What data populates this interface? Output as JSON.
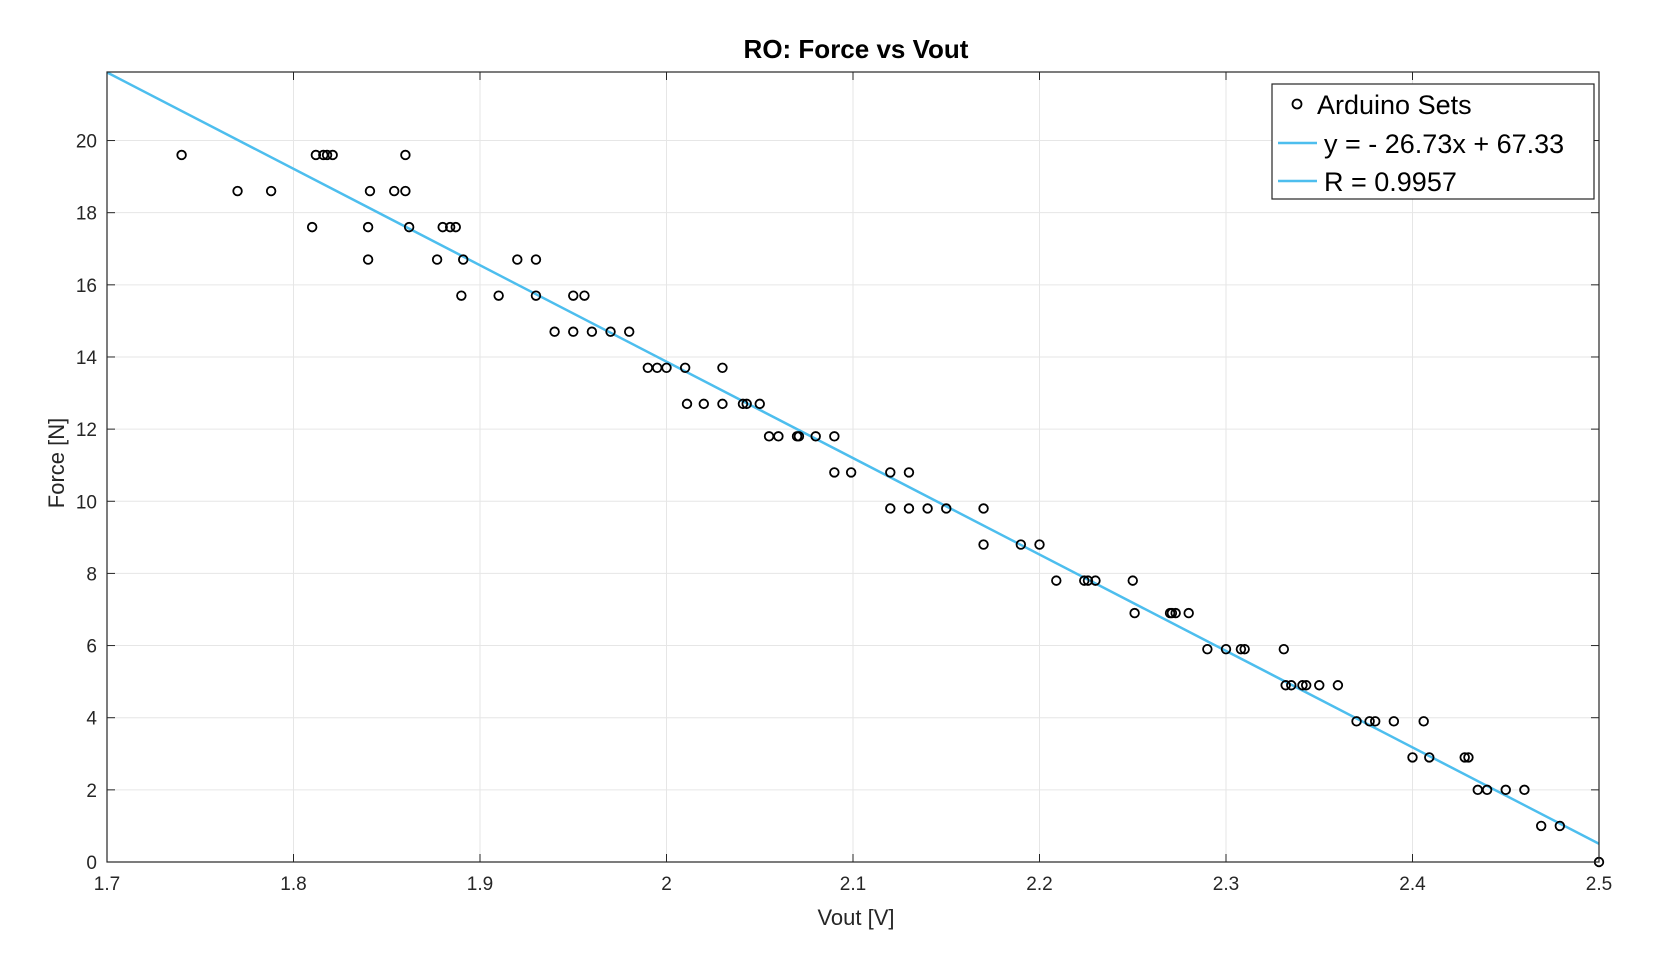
{
  "chart_data": {
    "type": "scatter",
    "title": "RO: Force vs Vout",
    "xlabel": "Vout [V]",
    "ylabel": "Force [N]",
    "xlim": [
      1.7,
      2.5
    ],
    "ylim": [
      0,
      21.9
    ],
    "xticks": [
      "1.7",
      "1.8",
      "1.9",
      "2",
      "2.1",
      "2.2",
      "2.3",
      "2.4",
      "2.5"
    ],
    "yticks": [
      "0",
      "2",
      "4",
      "6",
      "8",
      "10",
      "12",
      "14",
      "16",
      "18",
      "20"
    ],
    "grid": true,
    "legend_position": "top-right",
    "colors": {
      "points": "#000000",
      "fit_line": "#4DBEEE",
      "grid": "#e6e6e6",
      "axes": "#262626"
    },
    "legend": [
      {
        "label": "Arduino Sets",
        "marker": "circle"
      },
      {
        "label": "y = - 26.73x + 67.33",
        "marker": "line"
      },
      {
        "label": "R = 0.9957",
        "marker": "line"
      }
    ],
    "series": [
      {
        "name": "Arduino Sets",
        "kind": "scatter",
        "points": [
          [
            1.74,
            19.6
          ],
          [
            1.812,
            19.6
          ],
          [
            1.816,
            19.6
          ],
          [
            1.818,
            19.6
          ],
          [
            1.821,
            19.6
          ],
          [
            1.86,
            19.6
          ],
          [
            1.77,
            18.6
          ],
          [
            1.788,
            18.6
          ],
          [
            1.841,
            18.6
          ],
          [
            1.854,
            18.6
          ],
          [
            1.86,
            18.6
          ],
          [
            1.81,
            17.6
          ],
          [
            1.84,
            17.6
          ],
          [
            1.862,
            17.6
          ],
          [
            1.88,
            17.6
          ],
          [
            1.884,
            17.6
          ],
          [
            1.887,
            17.6
          ],
          [
            1.84,
            16.7
          ],
          [
            1.877,
            16.7
          ],
          [
            1.891,
            16.7
          ],
          [
            1.92,
            16.7
          ],
          [
            1.93,
            16.7
          ],
          [
            1.89,
            15.7
          ],
          [
            1.91,
            15.7
          ],
          [
            1.93,
            15.7
          ],
          [
            1.95,
            15.7
          ],
          [
            1.956,
            15.7
          ],
          [
            1.94,
            14.7
          ],
          [
            1.95,
            14.7
          ],
          [
            1.96,
            14.7
          ],
          [
            1.97,
            14.7
          ],
          [
            1.98,
            14.7
          ],
          [
            1.99,
            13.7
          ],
          [
            1.995,
            13.7
          ],
          [
            2.0,
            13.7
          ],
          [
            2.01,
            13.7
          ],
          [
            2.03,
            13.7
          ],
          [
            2.011,
            12.7
          ],
          [
            2.02,
            12.7
          ],
          [
            2.03,
            12.7
          ],
          [
            2.041,
            12.7
          ],
          [
            2.043,
            12.7
          ],
          [
            2.05,
            12.7
          ],
          [
            2.055,
            11.8
          ],
          [
            2.06,
            11.8
          ],
          [
            2.07,
            11.8
          ],
          [
            2.071,
            11.8
          ],
          [
            2.08,
            11.8
          ],
          [
            2.09,
            11.8
          ],
          [
            2.09,
            10.8
          ],
          [
            2.099,
            10.8
          ],
          [
            2.12,
            10.8
          ],
          [
            2.13,
            10.8
          ],
          [
            2.12,
            9.8
          ],
          [
            2.13,
            9.8
          ],
          [
            2.14,
            9.8
          ],
          [
            2.15,
            9.8
          ],
          [
            2.17,
            9.8
          ],
          [
            2.17,
            8.8
          ],
          [
            2.19,
            8.8
          ],
          [
            2.2,
            8.8
          ],
          [
            2.209,
            7.8
          ],
          [
            2.224,
            7.8
          ],
          [
            2.226,
            7.8
          ],
          [
            2.23,
            7.8
          ],
          [
            2.25,
            7.8
          ],
          [
            2.251,
            6.9
          ],
          [
            2.27,
            6.9
          ],
          [
            2.271,
            6.9
          ],
          [
            2.273,
            6.9
          ],
          [
            2.28,
            6.9
          ],
          [
            2.29,
            5.9
          ],
          [
            2.3,
            5.9
          ],
          [
            2.308,
            5.9
          ],
          [
            2.31,
            5.9
          ],
          [
            2.331,
            5.9
          ],
          [
            2.332,
            4.9
          ],
          [
            2.335,
            4.9
          ],
          [
            2.341,
            4.9
          ],
          [
            2.343,
            4.9
          ],
          [
            2.35,
            4.9
          ],
          [
            2.36,
            4.9
          ],
          [
            2.37,
            3.9
          ],
          [
            2.377,
            3.9
          ],
          [
            2.38,
            3.9
          ],
          [
            2.39,
            3.9
          ],
          [
            2.406,
            3.9
          ],
          [
            2.4,
            2.9
          ],
          [
            2.409,
            2.9
          ],
          [
            2.428,
            2.9
          ],
          [
            2.43,
            2.9
          ],
          [
            2.435,
            2.0
          ],
          [
            2.44,
            2.0
          ],
          [
            2.45,
            2.0
          ],
          [
            2.46,
            2.0
          ],
          [
            2.469,
            1.0
          ],
          [
            2.479,
            1.0
          ],
          [
            2.5,
            0.0
          ]
        ]
      },
      {
        "name": "y = - 26.73x + 67.33",
        "kind": "line",
        "slope": -26.73,
        "intercept": 67.33
      }
    ]
  }
}
